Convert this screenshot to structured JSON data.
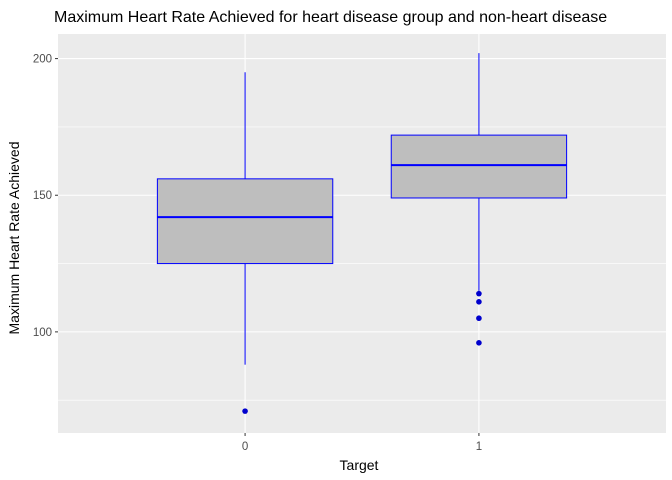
{
  "chart_data": {
    "type": "boxplot",
    "title": "Maximum Heart Rate Achieved for heart disease group and non-heart disease",
    "xlabel": "Target",
    "ylabel": "Maximum Heart Rate Achieved",
    "categories": [
      "0",
      "1"
    ],
    "ylim": [
      63,
      209
    ],
    "yticks": [
      100,
      150,
      200
    ],
    "ytick_labels": [
      "100",
      "150",
      "200"
    ],
    "grid": true,
    "legend": "none",
    "boxes": [
      {
        "category": "0",
        "whisker_low": 88,
        "q1": 125,
        "median": 142,
        "q3": 156,
        "whisker_high": 195,
        "outliers": [
          71
        ]
      },
      {
        "category": "1",
        "whisker_low": 115,
        "q1": 149,
        "median": 161,
        "q3": 172,
        "whisker_high": 202,
        "outliers": [
          114,
          111,
          105,
          96
        ]
      }
    ],
    "colors": {
      "panel_background": "#ebebeb",
      "grid_major": "#ffffff",
      "box_fill": "#bebebe",
      "box_line": "#0000ff",
      "outlier": "#0000cd",
      "tick_text": "#4d4d4d",
      "tick_mark": "#333333"
    }
  }
}
